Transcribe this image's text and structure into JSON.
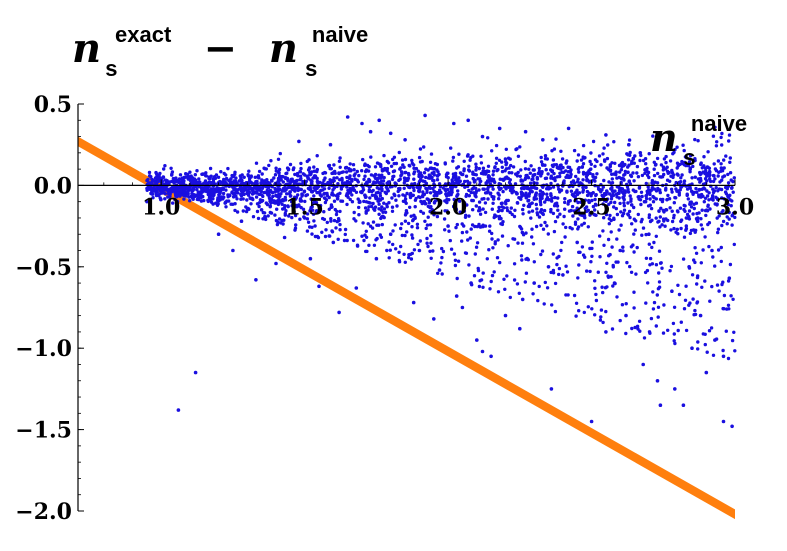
{
  "chart_data": {
    "type": "scatter",
    "ylabel": {
      "main1": "n",
      "sup1": "exact",
      "sub1": "s",
      "minus": "−",
      "main2": "n",
      "sup2": "naive",
      "sub2": "s"
    },
    "xlabel": {
      "main": "n",
      "sup": "naive",
      "sub": "s"
    },
    "xlim": [
      0.71,
      3.0
    ],
    "ylim": [
      -2.0,
      0.5
    ],
    "xticks": [
      {
        "value": 1.0,
        "label": "1.0"
      },
      {
        "value": 1.5,
        "label": "1.5"
      },
      {
        "value": 2.0,
        "label": "2.0"
      },
      {
        "value": 2.5,
        "label": "2.5"
      },
      {
        "value": 3.0,
        "label": "3.0"
      }
    ],
    "yticks": [
      {
        "value": 0.5,
        "label": "0.5"
      },
      {
        "value": 0.0,
        "label": "0.0"
      },
      {
        "value": -0.5,
        "label": "−0.5"
      },
      {
        "value": -1.0,
        "label": "−1.0"
      },
      {
        "value": -1.5,
        "label": "−1.5"
      },
      {
        "value": -2.0,
        "label": "−2.0"
      }
    ],
    "grid": false,
    "series": [
      {
        "kind": "points",
        "color": "#1a0fe0",
        "points": [
          [
            1.06,
            -1.38
          ],
          [
            1.12,
            -1.15
          ],
          [
            1.33,
            -0.58
          ],
          [
            1.2,
            -0.3
          ],
          [
            1.25,
            -0.4
          ],
          [
            1.4,
            -0.48
          ],
          [
            1.55,
            -0.62
          ],
          [
            1.62,
            -0.78
          ],
          [
            1.68,
            -0.63
          ],
          [
            1.7,
            0.38
          ],
          [
            1.65,
            0.42
          ],
          [
            1.73,
            0.33
          ],
          [
            1.76,
            0.4
          ],
          [
            1.8,
            0.32
          ],
          [
            1.92,
            0.43
          ],
          [
            2.02,
            0.38
          ],
          [
            2.07,
            0.4
          ],
          [
            2.18,
            0.35
          ],
          [
            2.27,
            0.33
          ],
          [
            2.42,
            0.35
          ],
          [
            2.55,
            0.31
          ],
          [
            2.63,
            0.25
          ],
          [
            2.67,
            0.2
          ],
          [
            1.59,
            0.25
          ],
          [
            1.48,
            0.27
          ],
          [
            1.85,
            0.28
          ],
          [
            2.12,
            0.3
          ],
          [
            2.33,
            0.28
          ],
          [
            1.97,
            -0.52
          ],
          [
            2.08,
            -0.6
          ],
          [
            2.12,
            -1.02
          ],
          [
            2.15,
            -1.05
          ],
          [
            2.1,
            -0.95
          ],
          [
            2.2,
            -0.8
          ],
          [
            2.26,
            -0.7
          ],
          [
            2.4,
            -0.55
          ],
          [
            2.55,
            -0.9
          ],
          [
            2.62,
            -0.8
          ],
          [
            2.68,
            -1.1
          ],
          [
            2.73,
            -1.2
          ],
          [
            2.79,
            -1.25
          ],
          [
            2.85,
            -1.0
          ],
          [
            2.88,
            -0.8
          ],
          [
            2.93,
            -0.95
          ],
          [
            2.96,
            -1.05
          ],
          [
            2.98,
            -0.57
          ],
          [
            2.99,
            -1.48
          ],
          [
            2.96,
            -1.45
          ],
          [
            2.9,
            -1.15
          ],
          [
            2.82,
            -1.35
          ],
          [
            2.74,
            -1.35
          ],
          [
            2.7,
            -0.3
          ],
          [
            2.6,
            -0.4
          ],
          [
            2.45,
            -0.35
          ],
          [
            2.35,
            -0.5
          ],
          [
            2.3,
            -0.6
          ],
          [
            1.9,
            -0.4
          ],
          [
            1.8,
            -0.3
          ],
          [
            1.5,
            -0.2
          ],
          [
            1.35,
            -0.15
          ],
          [
            1.28,
            -0.22
          ],
          [
            1.6,
            -0.35
          ],
          [
            1.75,
            -0.45
          ],
          [
            2.0,
            -0.25
          ],
          [
            2.05,
            -0.75
          ],
          [
            2.5,
            -1.45
          ],
          [
            2.36,
            -1.25
          ],
          [
            2.25,
            -0.88
          ],
          [
            2.58,
            -0.6
          ],
          [
            2.78,
            -0.65
          ],
          [
            2.84,
            -0.5
          ],
          [
            2.92,
            -0.4
          ],
          [
            2.87,
            -0.22
          ],
          [
            2.76,
            -0.15
          ],
          [
            2.64,
            -0.12
          ],
          [
            1.88,
            -0.72
          ],
          [
            1.95,
            -0.82
          ],
          [
            2.03,
            -0.68
          ],
          [
            1.43,
            -0.32
          ],
          [
            1.52,
            -0.45
          ]
        ]
      },
      {
        "kind": "band",
        "color": "#ff7f0e",
        "x": [
          0.71,
          3.0
        ],
        "y": [
          0.27,
          -2.02
        ],
        "thickness": 0.06
      }
    ]
  }
}
